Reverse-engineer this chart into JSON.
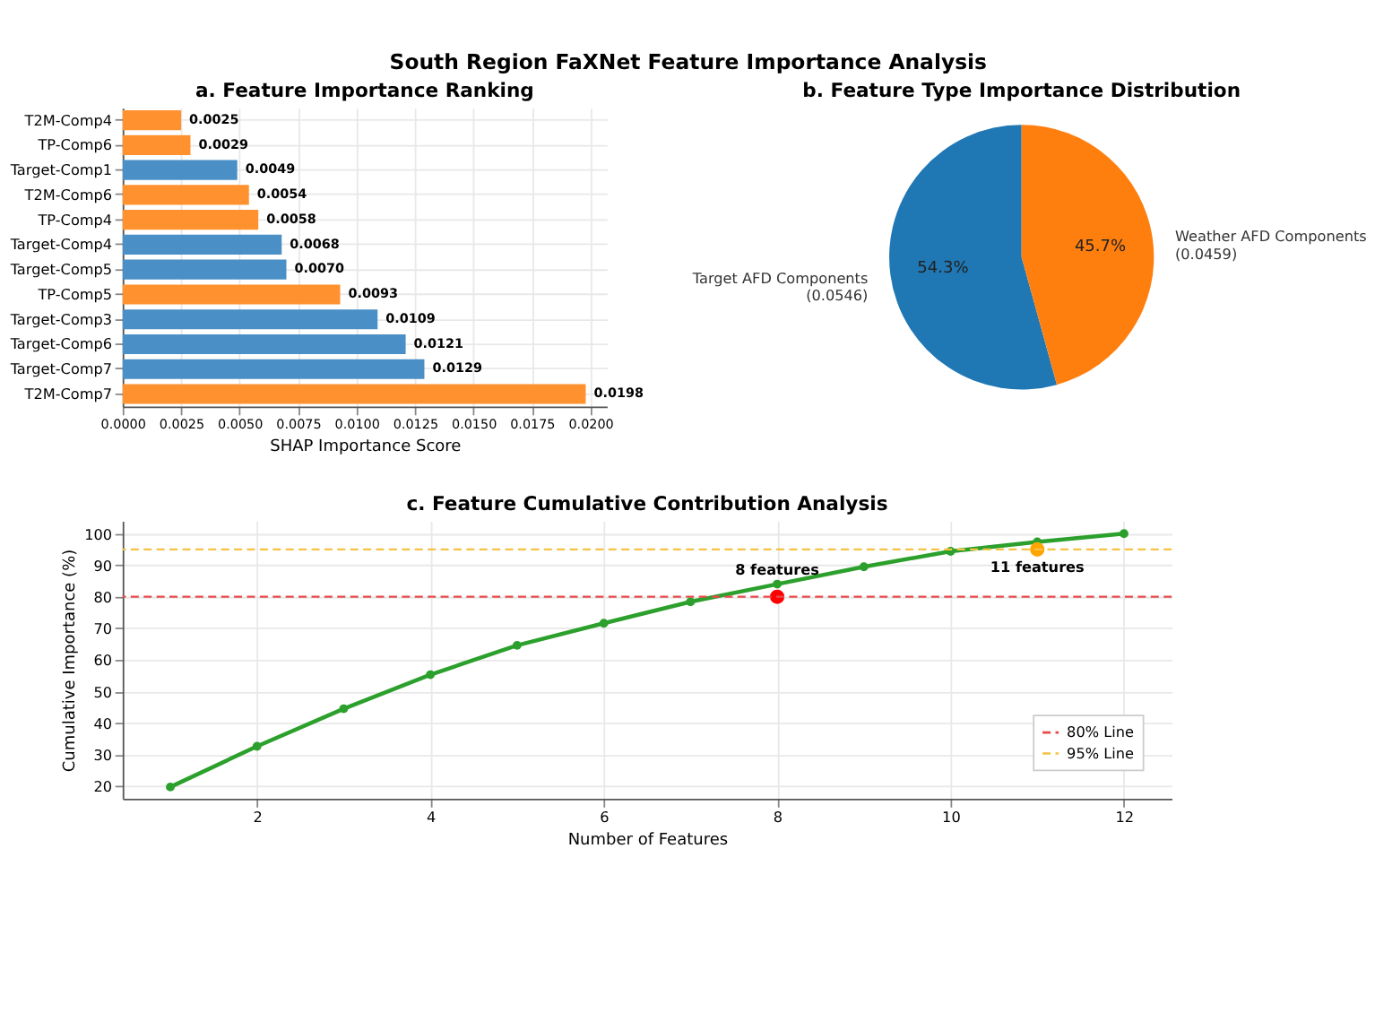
{
  "chart_data": [
    {
      "type": "bar",
      "title": "a. Feature Importance Ranking",
      "annotations": [
        "South Region FaXNet Feature Importance Analysis"
      ],
      "orientation": "horizontal",
      "xlabel": "SHAP Importance Score",
      "categories": [
        "T2M-Comp4",
        "TP-Comp6",
        "Target-Comp1",
        "T2M-Comp6",
        "TP-Comp4",
        "Target-Comp4",
        "Target-Comp5",
        "TP-Comp5",
        "Target-Comp3",
        "Target-Comp6",
        "Target-Comp7",
        "T2M-Comp7"
      ],
      "values": [
        0.0025,
        0.0029,
        0.0049,
        0.0054,
        0.0058,
        0.0068,
        0.007,
        0.0093,
        0.0109,
        0.0121,
        0.0129,
        0.0198
      ],
      "colors": [
        "#ff922e",
        "#ff922e",
        "#4a8fc6",
        "#ff922e",
        "#ff922e",
        "#4a8fc6",
        "#4a8fc6",
        "#ff922e",
        "#4a8fc6",
        "#4a8fc6",
        "#4a8fc6",
        "#ff922e"
      ],
      "xlim": [
        0,
        0.0207
      ],
      "xticks": [
        {
          "value": 0,
          "label": "0.0000"
        },
        {
          "value": 0.0025,
          "label": "0.0025"
        },
        {
          "value": 0.005,
          "label": "0.0050"
        },
        {
          "value": 0.0075,
          "label": "0.0075"
        },
        {
          "value": 0.01,
          "label": "0.0100"
        },
        {
          "value": 0.0125,
          "label": "0.0125"
        },
        {
          "value": 0.015,
          "label": "0.0150"
        },
        {
          "value": 0.0175,
          "label": "0.0175"
        },
        {
          "value": 0.02,
          "label": "0.0200"
        }
      ],
      "value_labels": [
        "0.0025",
        "0.0029",
        "0.0049",
        "0.0054",
        "0.0058",
        "0.0068",
        "0.0070",
        "0.0093",
        "0.0109",
        "0.0121",
        "0.0129",
        "0.0198"
      ],
      "grid": true,
      "legend": false
    },
    {
      "type": "pie",
      "title": "b. Feature Type Importance Distribution",
      "categories": [
        "Target AFD Components\n(0.0546)",
        "Weather AFD Components\n(0.0459)"
      ],
      "values": [
        54.3,
        45.7
      ],
      "colors": [
        "#1f77b4",
        "#ff7f0e"
      ],
      "value_labels": [
        "54.3%",
        "45.7%"
      ],
      "legend": false
    },
    {
      "type": "line",
      "title": "c. Feature Cumulative Contribution Analysis",
      "xlabel": "Number of Features",
      "ylabel": "Cumulative Importance (%)",
      "series": [
        {
          "type": "line",
          "color": "#2ca02c",
          "x": [
            1,
            2,
            3,
            4,
            5,
            6,
            7,
            8,
            9,
            10,
            11,
            12
          ],
          "values": [
            19.7,
            32.6,
            44.5,
            55.3,
            64.6,
            71.6,
            78.4,
            84.0,
            89.5,
            94.4,
            97.4,
            100.0
          ],
          "marker": "circle"
        },
        {
          "type": "scatter",
          "color": "#ff0000",
          "x": [
            8
          ],
          "values": [
            80
          ],
          "marker": "circle"
        },
        {
          "type": "scatter",
          "color": "#ffa500",
          "x": [
            11
          ],
          "values": [
            95
          ],
          "marker": "circle"
        }
      ],
      "xlim": [
        0.45,
        12.55
      ],
      "xticks": [
        2,
        4,
        6,
        8,
        10,
        12
      ],
      "ylim": [
        16,
        104
      ],
      "yticks": [
        20,
        30,
        40,
        50,
        60,
        70,
        80,
        90,
        100
      ],
      "ref_lines": [
        {
          "axis": "y",
          "value": 80,
          "label": "80% Line",
          "color": "#e84a4a",
          "line_style": "dashed"
        },
        {
          "axis": "y",
          "value": 95,
          "label": "95% Line",
          "color": "#f5c242",
          "line_style": "dashed"
        }
      ],
      "annotations": [
        {
          "text": "8 features",
          "x": 8,
          "y": 84.0
        },
        {
          "text": "11 features",
          "x": 11,
          "y": 95
        }
      ],
      "grid": true,
      "legend": "bottom right",
      "line_style": "solid"
    }
  ]
}
